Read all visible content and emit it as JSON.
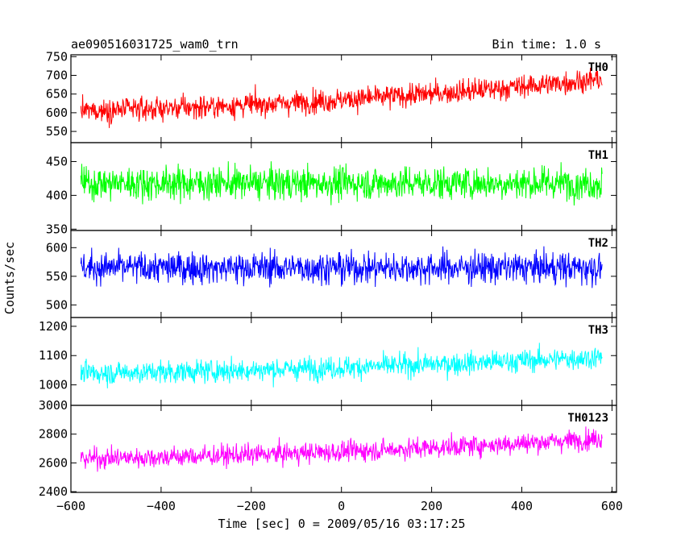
{
  "chart_data": {
    "type": "line",
    "title_left": "ae090516031725_wam0_trn",
    "title_right": "Bin time: 1.0 s",
    "xlabel": "Time [sec] 0 = 2009/05/16 03:17:25",
    "ylabel": "Counts/sec",
    "xlim": [
      -600,
      610
    ],
    "x_range": [
      -578,
      578
    ],
    "x_step": 1.0,
    "xticks": [
      -600,
      -400,
      -200,
      0,
      200,
      400,
      600
    ],
    "xtick_labels": [
      "−600",
      "−400",
      "−200",
      "0",
      "200",
      "400",
      "600"
    ],
    "panels": [
      {
        "name": "TH0",
        "color": "#ff0000",
        "ylim": [
          520,
          755
        ],
        "yticks": [
          550,
          600,
          650,
          700,
          750
        ],
        "ytick_labels": [
          "550",
          "600",
          "650",
          "700",
          "750"
        ],
        "trend_start": 605,
        "trend_end": 690,
        "noise": 28
      },
      {
        "name": "TH1",
        "color": "#00ff00",
        "ylim": [
          348,
          478
        ],
        "yticks": [
          350,
          400,
          450
        ],
        "ytick_labels": [
          "350",
          "400",
          "450"
        ],
        "trend_start": 418,
        "trend_end": 418,
        "noise": 22
      },
      {
        "name": "TH2",
        "color": "#0000ff",
        "ylim": [
          478,
          630
        ],
        "yticks": [
          500,
          550,
          600
        ],
        "ytick_labels": [
          "500",
          "550",
          "600"
        ],
        "trend_start": 565,
        "trend_end": 565,
        "noise": 25
      },
      {
        "name": "TH3",
        "color": "#00ffff",
        "ylim": [
          930,
          1230
        ],
        "yticks": [
          1000,
          1100,
          1200
        ],
        "ytick_labels": [
          "1000",
          "1100",
          "1200"
        ],
        "trend_start": 1040,
        "trend_end": 1095,
        "noise": 35
      },
      {
        "name": "TH0123",
        "color": "#ff00ff",
        "ylim": [
          2395,
          3000
        ],
        "yticks": [
          2400,
          2600,
          2800,
          3000
        ],
        "ytick_labels": [
          "2400",
          "2600",
          "2800",
          "3000"
        ],
        "trend_start": 2630,
        "trend_end": 2770,
        "noise": 65
      }
    ]
  }
}
